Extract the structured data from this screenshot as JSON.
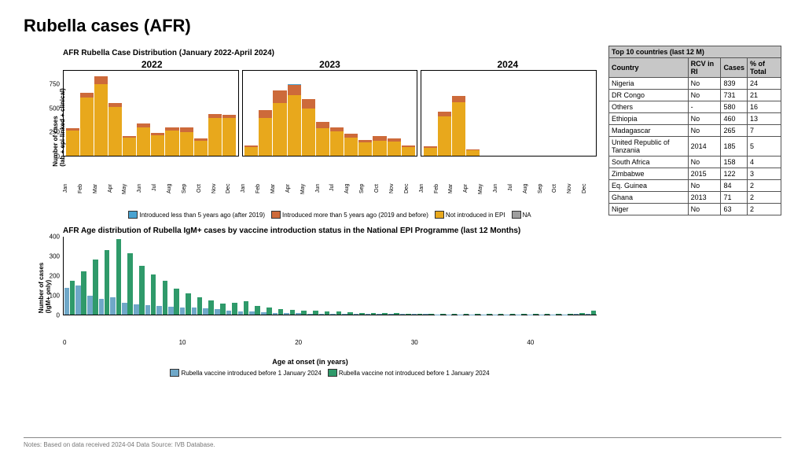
{
  "title": "Rubella cases (AFR)",
  "footer_note": "Notes: Based on data received 2024-04 Data Source: IVB Database.",
  "top_chart": {
    "title": "AFR Rubella Case Distribution (January 2022-April 2024)",
    "ylabel": "Number of cases\n(lab + epi-linked + clinical)",
    "ymax": 900,
    "yticks": [
      0,
      250,
      500,
      750
    ],
    "months": [
      "Jan",
      "Feb",
      "Mar",
      "Apr",
      "May",
      "Jun",
      "Jul",
      "Aug",
      "Sep",
      "Oct",
      "Nov",
      "Dec"
    ],
    "years": [
      "2022",
      "2023",
      "2024"
    ],
    "colors": {
      "after2019": "#4aa3d1",
      "before2019": "#cd6a3a",
      "not_introduced": "#e8a81c",
      "na": "#9e9e9e"
    },
    "legend_labels": {
      "after2019": "Introduced less than 5 years ago (after 2019)",
      "before2019": "Introduced more than 5 years ago (2019 and before)",
      "not_introduced": "Not introduced in EPI",
      "na": "NA"
    },
    "data": {
      "2022": [
        {
          "not": 270,
          "b19": 20,
          "a19": 0
        },
        {
          "not": 620,
          "b19": 50,
          "a19": 0
        },
        {
          "not": 760,
          "b19": 80,
          "a19": 5
        },
        {
          "not": 520,
          "b19": 40,
          "a19": 0
        },
        {
          "not": 190,
          "b19": 20,
          "a19": 0
        },
        {
          "not": 300,
          "b19": 40,
          "a19": 0
        },
        {
          "not": 220,
          "b19": 20,
          "a19": 0
        },
        {
          "not": 270,
          "b19": 30,
          "a19": 0
        },
        {
          "not": 250,
          "b19": 50,
          "a19": 0
        },
        {
          "not": 160,
          "b19": 20,
          "a19": 0
        },
        {
          "not": 400,
          "b19": 40,
          "a19": 0
        },
        {
          "not": 400,
          "b19": 30,
          "a19": 0
        }
      ],
      "2023": [
        {
          "not": 95,
          "b19": 10,
          "a19": 0
        },
        {
          "not": 400,
          "b19": 80,
          "a19": 5
        },
        {
          "not": 560,
          "b19": 130,
          "a19": 5
        },
        {
          "not": 640,
          "b19": 110,
          "a19": 5
        },
        {
          "not": 500,
          "b19": 100,
          "a19": 0
        },
        {
          "not": 290,
          "b19": 70,
          "a19": 0
        },
        {
          "not": 260,
          "b19": 40,
          "a19": 0
        },
        {
          "not": 190,
          "b19": 40,
          "a19": 0
        },
        {
          "not": 140,
          "b19": 30,
          "a19": 0
        },
        {
          "not": 160,
          "b19": 50,
          "a19": 0
        },
        {
          "not": 150,
          "b19": 30,
          "a19": 0
        },
        {
          "not": 90,
          "b19": 20,
          "a19": 0
        }
      ],
      "2024": [
        {
          "not": 80,
          "b19": 20,
          "a19": 0
        },
        {
          "not": 420,
          "b19": 50,
          "a19": 0
        },
        {
          "not": 570,
          "b19": 60,
          "a19": 0
        },
        {
          "not": 60,
          "b19": 10,
          "a19": 0
        },
        {
          "not": 0,
          "b19": 0,
          "a19": 0
        },
        {
          "not": 0,
          "b19": 0,
          "a19": 0
        },
        {
          "not": 0,
          "b19": 0,
          "a19": 0
        },
        {
          "not": 0,
          "b19": 0,
          "a19": 0
        },
        {
          "not": 0,
          "b19": 0,
          "a19": 0
        },
        {
          "not": 0,
          "b19": 0,
          "a19": 0
        },
        {
          "not": 0,
          "b19": 0,
          "a19": 0
        },
        {
          "not": 0,
          "b19": 0,
          "a19": 0
        }
      ]
    }
  },
  "age_chart": {
    "title": "AFR Age distribution of Rubella IgM+ cases by vaccine introduction status in the National EPI Programme (last 12 Months)",
    "ylabel": "Number of cases\n(IgM+ only)",
    "ymax": 400,
    "yticks": [
      0,
      100,
      200,
      300,
      400
    ],
    "xlabel": "Age at onset (in years)",
    "xticks": [
      0,
      10,
      20,
      30,
      40
    ],
    "age_max": 46,
    "colors": {
      "intro": "#6fa8c8",
      "not_intro": "#2f9a6a"
    },
    "legend_labels": {
      "intro": "Rubella vaccine introduced before 1 January 2024",
      "not_intro": "Rubella vaccine not introduced before 1 January 2024"
    },
    "intro": [
      140,
      150,
      100,
      80,
      90,
      60,
      55,
      50,
      45,
      40,
      38,
      35,
      32,
      30,
      20,
      18,
      15,
      12,
      10,
      8,
      8,
      6,
      6,
      5,
      5,
      4,
      4,
      4,
      3,
      3,
      3,
      3,
      2,
      2,
      2,
      2,
      2,
      2,
      2,
      2,
      2,
      2,
      2,
      2,
      3,
      5
    ],
    "not_intro": [
      175,
      225,
      285,
      335,
      390,
      320,
      255,
      210,
      175,
      135,
      110,
      90,
      75,
      58,
      60,
      70,
      45,
      35,
      30,
      25,
      22,
      20,
      18,
      15,
      12,
      10,
      10,
      8,
      8,
      6,
      6,
      5,
      5,
      5,
      4,
      4,
      4,
      4,
      4,
      4,
      4,
      4,
      4,
      5,
      10,
      20
    ]
  },
  "table": {
    "header": "Top 10 countries (last 12 M)",
    "columns": [
      "Country",
      "RCV in RI",
      "Cases",
      "% of Total"
    ],
    "rows": [
      [
        "Nigeria",
        "No",
        "839",
        "24"
      ],
      [
        "DR Congo",
        "No",
        "731",
        "21"
      ],
      [
        "Others",
        "-",
        "580",
        "16"
      ],
      [
        "Ethiopia",
        "No",
        "460",
        "13"
      ],
      [
        "Madagascar",
        "No",
        "265",
        "7"
      ],
      [
        "United Republic of Tanzania",
        "2014",
        "185",
        "5"
      ],
      [
        "South Africa",
        "No",
        "158",
        "4"
      ],
      [
        "Zimbabwe",
        "2015",
        "122",
        "3"
      ],
      [
        "Eq. Guinea",
        "No",
        "84",
        "2"
      ],
      [
        "Ghana",
        "2013",
        "71",
        "2"
      ],
      [
        "Niger",
        "No",
        "63",
        "2"
      ]
    ]
  }
}
